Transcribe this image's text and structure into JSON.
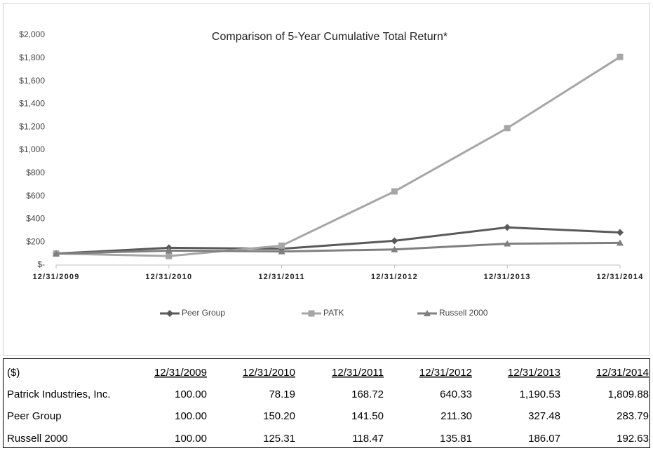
{
  "chart_data": {
    "type": "line",
    "title": "Comparison of 5-Year Cumulative Total Return*",
    "categories": [
      "12/31/2009",
      "12/31/2010",
      "12/31/2011",
      "12/31/2012",
      "12/31/2013",
      "12/31/2014"
    ],
    "series": [
      {
        "name": "Peer Group",
        "color": "#595959",
        "marker": "diamond",
        "values": [
          100.0,
          150.2,
          141.5,
          211.3,
          327.48,
          283.79
        ]
      },
      {
        "name": "PATK",
        "color": "#a6a6a6",
        "marker": "square",
        "values": [
          100.0,
          78.19,
          168.72,
          640.33,
          1190.53,
          1809.88
        ]
      },
      {
        "name": "Russell 2000",
        "color": "#7f7f7f",
        "marker": "triangle",
        "values": [
          100.0,
          125.31,
          118.47,
          135.81,
          186.07,
          192.63
        ]
      }
    ],
    "ylim": [
      0,
      2000
    ],
    "yticks": [
      {
        "value": 0,
        "label": "$-"
      },
      {
        "value": 200,
        "label": "$200"
      },
      {
        "value": 400,
        "label": "$400"
      },
      {
        "value": 600,
        "label": "$600"
      },
      {
        "value": 800,
        "label": "$800"
      },
      {
        "value": 1000,
        "label": "$1,000"
      },
      {
        "value": 1200,
        "label": "$1,200"
      },
      {
        "value": 1400,
        "label": "$1,400"
      },
      {
        "value": 1600,
        "label": "$1,600"
      },
      {
        "value": 1800,
        "label": "$1,800"
      },
      {
        "value": 2000,
        "label": "$2,000"
      }
    ],
    "grid": false,
    "legend": "bottom"
  },
  "table": {
    "header": [
      "($)",
      "12/31/2009",
      "12/31/2010",
      "12/31/2011",
      "12/31/2012",
      "12/31/2013",
      "12/31/2014"
    ],
    "rows": [
      [
        "Patrick Industries, Inc.",
        "100.00",
        "78.19",
        "168.72",
        "640.33",
        "1,190.53",
        "1,809.88"
      ],
      [
        "Peer Group",
        "100.00",
        "150.20",
        "141.50",
        "211.30",
        "327.48",
        "283.79"
      ],
      [
        "Russell 2000",
        "100.00",
        "125.31",
        "118.47",
        "135.81",
        "186.07",
        "192.63"
      ]
    ]
  }
}
